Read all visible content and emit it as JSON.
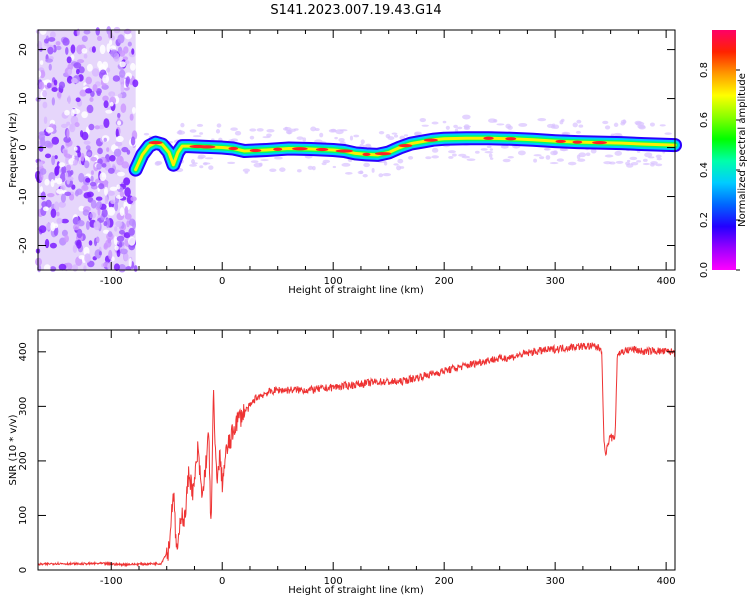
{
  "figure": {
    "title": "S141.2023.007.19.43.G14"
  },
  "chart_data": [
    {
      "type": "heatmap",
      "name": "spectrogram",
      "xlabel": "Height of straight line (km)",
      "ylabel": "Frequency (Hz)",
      "xlim": [
        -166,
        408
      ],
      "ylim": [
        -25,
        24
      ],
      "x_ticks": [
        -100,
        0,
        100,
        200,
        300,
        400
      ],
      "y_ticks": [
        -20,
        -10,
        0,
        10,
        20
      ],
      "noise_region_x": [
        -166,
        -78
      ],
      "ridge": {
        "x": [
          -78,
          -72,
          -66,
          -60,
          -54,
          -48,
          -44,
          -40,
          -36,
          -30,
          -20,
          -10,
          0,
          10,
          20,
          40,
          60,
          80,
          100,
          110,
          120,
          130,
          140,
          150,
          160,
          170,
          180,
          190,
          200,
          220,
          240,
          260,
          280,
          300,
          320,
          340,
          360,
          380,
          408
        ],
        "y": [
          -4.5,
          -1.5,
          0.3,
          1.0,
          0.6,
          -1.0,
          -3.5,
          -1.0,
          0.3,
          0.3,
          0.2,
          0.1,
          0.0,
          -0.2,
          -0.7,
          -0.5,
          -0.2,
          -0.3,
          -0.5,
          -0.7,
          -1.2,
          -1.4,
          -1.5,
          -1.0,
          0.0,
          0.8,
          1.2,
          1.6,
          1.8,
          1.9,
          1.9,
          1.8,
          1.6,
          1.3,
          1.1,
          1.0,
          0.9,
          0.7,
          0.5
        ]
      },
      "colorbar": {
        "label": "Normalized spectral amplitude",
        "ticks": [
          "0.0",
          "0.2",
          "0.4",
          "0.6",
          "0.8"
        ],
        "range": [
          0,
          0.96
        ],
        "colors": [
          "#ff00ff",
          "#9900ff",
          "#2200ff",
          "#0066ff",
          "#00ccff",
          "#00ffaa",
          "#00ff00",
          "#88ff00",
          "#ffff00",
          "#ff9900",
          "#ff2200",
          "#ff0066"
        ]
      }
    },
    {
      "type": "line",
      "name": "snr",
      "xlabel": "Height of straight line (km)",
      "ylabel": "SNR (10 * v/v)",
      "xlim": [
        -166,
        408
      ],
      "ylim": [
        0,
        440
      ],
      "x_ticks": [
        -100,
        0,
        100,
        200,
        300,
        400
      ],
      "y_ticks": [
        0,
        100,
        200,
        300,
        400
      ],
      "color": "#ee3333",
      "series": [
        {
          "x": [
            -166,
            -150,
            -130,
            -110,
            -90,
            -70,
            -55,
            -48,
            -44,
            -42,
            -40,
            -37,
            -34,
            -30,
            -26,
            -22,
            -18,
            -14,
            -12,
            -10,
            -8,
            -6,
            -4,
            -2,
            0,
            4,
            8,
            12,
            16,
            20,
            25,
            30,
            40,
            50,
            60,
            80,
            100,
            120,
            140,
            160,
            180,
            200,
            220,
            240,
            260,
            280,
            300,
            320,
            335,
            342,
            344,
            346,
            348,
            350,
            352,
            354,
            356,
            360,
            370,
            380,
            390,
            400,
            408
          ],
          "y": [
            10,
            12,
            11,
            12,
            10,
            11,
            12,
            40,
            150,
            60,
            30,
            110,
            90,
            180,
            140,
            220,
            130,
            210,
            250,
            60,
            330,
            200,
            170,
            210,
            160,
            220,
            240,
            270,
            280,
            290,
            300,
            315,
            325,
            330,
            330,
            330,
            335,
            340,
            345,
            345,
            355,
            365,
            375,
            385,
            390,
            400,
            405,
            410,
            410,
            405,
            230,
            215,
            235,
            245,
            240,
            245,
            395,
            400,
            405,
            400,
            402,
            400,
            400
          ]
        }
      ]
    }
  ]
}
